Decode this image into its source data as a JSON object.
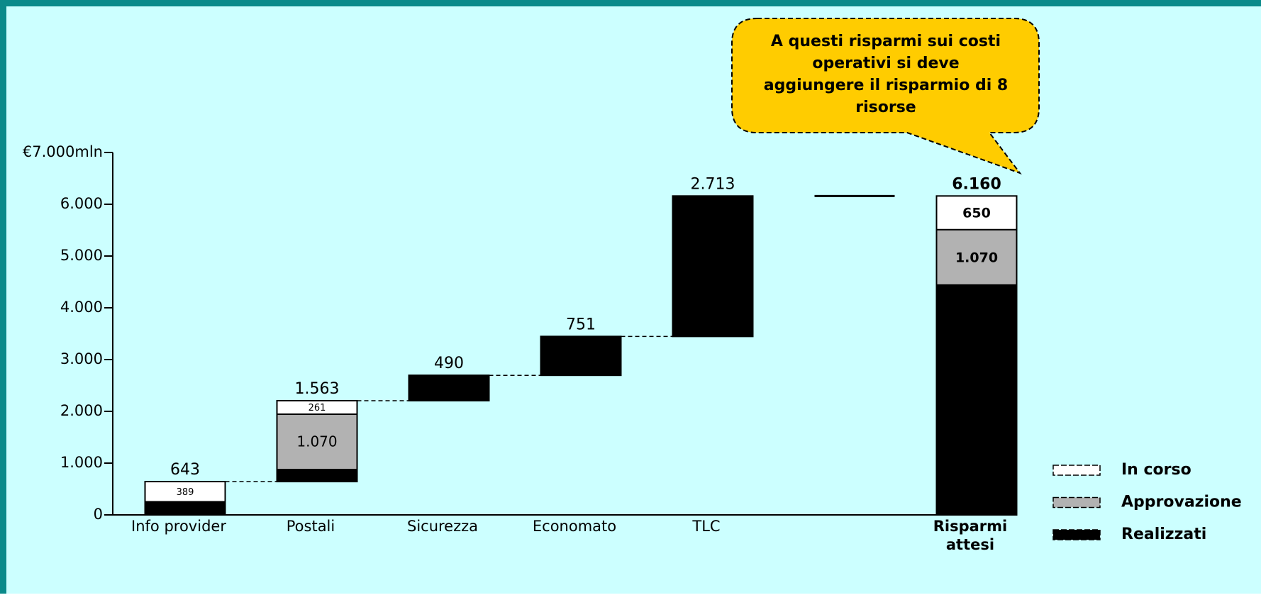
{
  "chart_data": {
    "type": "waterfall",
    "categories": [
      "Info provider",
      "Postali",
      "Sicurezza",
      "Economato",
      "TLC",
      null,
      "Risparmi attesi"
    ],
    "series": [
      {
        "name": "Realizzati",
        "color": "#000000",
        "values": [
          254,
          232,
          490,
          751,
          2713,
          null,
          4440
        ],
        "value_labels": [
          "254",
          "232",
          null,
          null,
          null,
          null,
          "4.440"
        ]
      },
      {
        "name": "Approvazione",
        "color": "#b2b2b2",
        "values": [
          null,
          1070,
          null,
          null,
          null,
          null,
          1070
        ],
        "value_labels": [
          null,
          "1.070",
          null,
          null,
          null,
          null,
          "1.070"
        ]
      },
      {
        "name": "In corso",
        "color": "#ffffff",
        "values": [
          389,
          261,
          null,
          null,
          null,
          null,
          650
        ],
        "value_labels": [
          "389",
          "261",
          null,
          null,
          null,
          null,
          "650"
        ]
      }
    ],
    "totals": {
      "values": [
        643,
        1563,
        490,
        751,
        2713,
        null,
        6160
      ],
      "value_labels": [
        "643",
        "1.563",
        "490",
        "751",
        "2.713",
        null,
        "6.160"
      ]
    },
    "ylim": [
      0,
      7000
    ],
    "yticks": [
      0,
      {
        "value": 1000,
        "label": "1.000"
      },
      {
        "value": 2000,
        "label": "2.000"
      },
      {
        "value": 3000,
        "label": "3.000"
      },
      {
        "value": 4000,
        "label": "4.000"
      },
      {
        "value": 5000,
        "label": "5.000"
      },
      {
        "value": 6000,
        "label": "6.000"
      },
      {
        "value": 7000,
        "label": "€7.000mln"
      }
    ],
    "annotation": "A questi risparmi sui costi operativi si deve aggiungere il risparmio di 8 risorse",
    "legend": "right"
  }
}
